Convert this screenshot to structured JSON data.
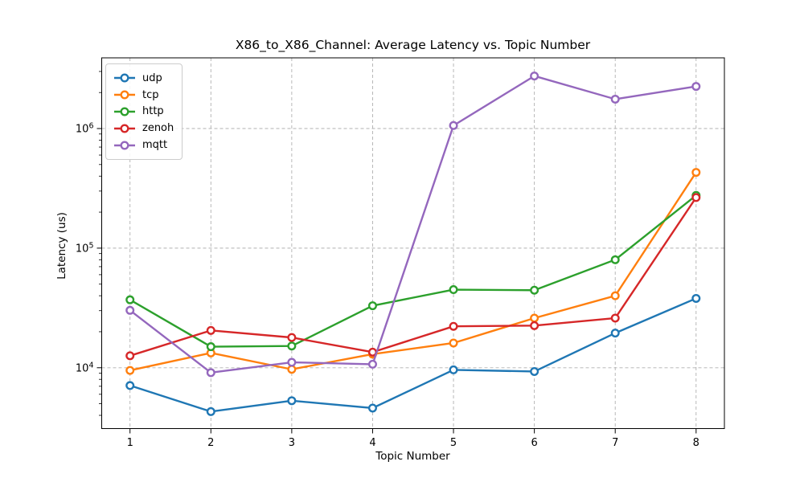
{
  "chart_data": {
    "type": "line",
    "title": "X86_to_X86_Channel: Average Latency vs. Topic Number",
    "xlabel": "Topic Number",
    "ylabel": "Latency (us)",
    "x": [
      1,
      2,
      3,
      4,
      5,
      6,
      7,
      8
    ],
    "x_tick_labels": [
      "1",
      "2",
      "3",
      "4",
      "5",
      "6",
      "7",
      "8"
    ],
    "y_scale": "log",
    "xlim": [
      0.65,
      8.35
    ],
    "ylim": [
      3100,
      3900000
    ],
    "y_major_ticks": [
      {
        "value": 10000,
        "label_base": "10",
        "label_exp": "4"
      },
      {
        "value": 100000,
        "label_base": "10",
        "label_exp": "5"
      },
      {
        "value": 1000000,
        "label_base": "10",
        "label_exp": "6"
      }
    ],
    "grid": true,
    "legend_position": "upper-left",
    "series": [
      {
        "name": "udp",
        "color": "#1f77b4",
        "values": [
          7100,
          4300,
          5300,
          4600,
          9600,
          9300,
          19500,
          38000
        ]
      },
      {
        "name": "tcp",
        "color": "#ff7f0e",
        "values": [
          9500,
          13300,
          9700,
          13000,
          16100,
          26000,
          40000,
          430000
        ]
      },
      {
        "name": "http",
        "color": "#2ca02c",
        "values": [
          37000,
          15000,
          15200,
          33000,
          45000,
          44500,
          80000,
          276000
        ]
      },
      {
        "name": "zenoh",
        "color": "#d62728",
        "values": [
          12600,
          20500,
          17900,
          13500,
          22200,
          22500,
          26000,
          265000
        ]
      },
      {
        "name": "mqtt",
        "color": "#9467bd",
        "values": [
          30200,
          9100,
          11100,
          10700,
          1060000,
          2750000,
          1760000,
          2250000
        ]
      }
    ]
  },
  "colors": {
    "grid": "#b0b0b0",
    "spine": "#000000",
    "tick": "#000000",
    "text": "#000000",
    "legend_border": "#cccccc",
    "background": "#ffffff",
    "marker_face": "#ffffff"
  }
}
